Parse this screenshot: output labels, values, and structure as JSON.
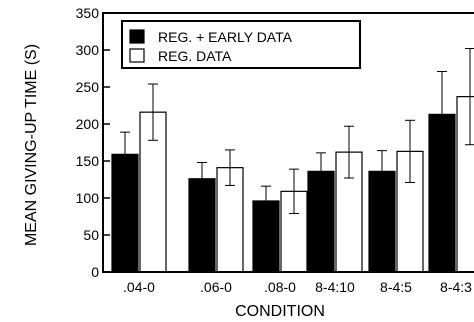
{
  "chart_data": {
    "type": "bar",
    "xlabel": "CONDITION",
    "ylabel": "MEAN GIVING-UP TIME (S)",
    "ylim": [
      0,
      350
    ],
    "y_ticks": [
      "0",
      "50",
      "100",
      "150",
      "200",
      "250",
      "300",
      "350"
    ],
    "categories": [
      ".04-0",
      ".06-0",
      ".08-0",
      "8-4:10",
      "8-4:5",
      "8-4:3"
    ],
    "legend_position": "top-left",
    "series": [
      {
        "name": "REG. + EARLY DATA",
        "color": "#000000",
        "values": [
          159,
          126,
          96,
          136,
          136,
          213
        ],
        "error": [
          30,
          22,
          20,
          25,
          28,
          58
        ]
      },
      {
        "name": "REG. DATA",
        "color": "#ffffff",
        "values": [
          216,
          141,
          109,
          162,
          163,
          237
        ],
        "error": [
          38,
          24,
          30,
          35,
          42,
          65
        ]
      }
    ]
  }
}
